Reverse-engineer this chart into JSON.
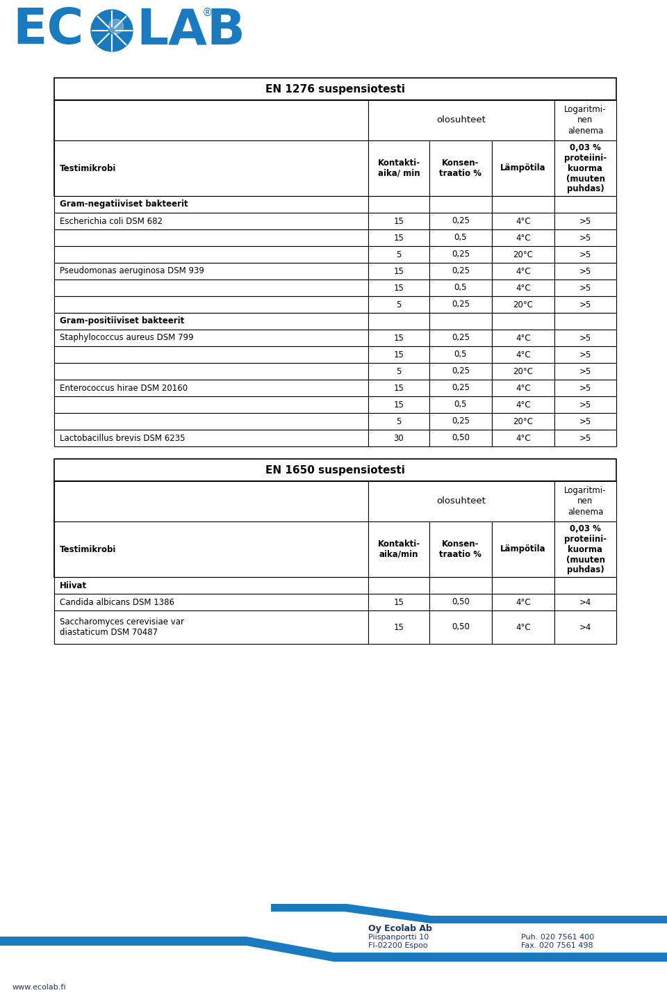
{
  "ecolab_blue": "#1a7abf",
  "ecolab_dark": "#1a3560",
  "title_en1276": "EN 1276 suspensiotesti",
  "title_en1650": "EN 1650 suspensiotesti",
  "col_olosuhteet": "olosuhteet",
  "col_logaritminen": "Logaritmi-\nnen\nalenema",
  "col_testimicrobi": "Testimikrobi",
  "col_kontakti_1276": "Kontakti-\naika/ min",
  "col_kontakti_1650": "Kontakti-\naika/min",
  "col_konsen": "Konsen-\ntraatio %",
  "col_lampotila": "Lämpötila",
  "col_003": "0,03 %\nproteiini-\nkuorma\n(muuten\npuhdas)",
  "gram_neg": "Gram-negatiiviset bakteerit",
  "gram_pos": "Gram-positiiviset bakteerit",
  "hiivat": "Hiivat",
  "en1276_data": [
    [
      "gram_neg",
      "",
      "",
      "",
      ""
    ],
    [
      "Escherichia coli DSM 682",
      "15",
      "0,25",
      "4°C",
      ">5"
    ],
    [
      "",
      "15",
      "0,5",
      "4°C",
      ">5"
    ],
    [
      "",
      "5",
      "0,25",
      "20°C",
      ">5"
    ],
    [
      "Pseudomonas aeruginosa DSM 939",
      "15",
      "0,25",
      "4°C",
      ">5"
    ],
    [
      "",
      "15",
      "0,5",
      "4°C",
      ">5"
    ],
    [
      "",
      "5",
      "0,25",
      "20°C",
      ">5"
    ],
    [
      "gram_pos",
      "",
      "",
      "",
      ""
    ],
    [
      "Staphylococcus aureus DSM 799",
      "15",
      "0,25",
      "4°C",
      ">5"
    ],
    [
      "",
      "15",
      "0,5",
      "4°C",
      ">5"
    ],
    [
      "",
      "5",
      "0,25",
      "20°C",
      ">5"
    ],
    [
      "Enterococcus hirae DSM 20160",
      "15",
      "0,25",
      "4°C",
      ">5"
    ],
    [
      "",
      "15",
      "0,5",
      "4°C",
      ">5"
    ],
    [
      "",
      "5",
      "0,25",
      "20°C",
      ">5"
    ],
    [
      "Lactobacillus brevis DSM 6235",
      "30",
      "0,50",
      "4°C",
      ">5"
    ]
  ],
  "en1650_data": [
    [
      "hiivat",
      "",
      "",
      "",
      ""
    ],
    [
      "Candida albicans DSM 1386",
      "15",
      "0,50",
      "4°C",
      ">4"
    ],
    [
      "Saccharomyces cerevisiae var\ndiastaticum DSM 70487",
      "15",
      "0,50",
      "4°C",
      ">4"
    ]
  ],
  "footer_company": "Oy Ecolab Ab",
  "footer_addr1": "Piispanportti 10",
  "footer_addr2": "FI-02200 Espoo",
  "footer_puh": "Puh. 020 7561 400",
  "footer_fax": "Fax. 020 7561 498",
  "footer_www": "www.ecolab.fi",
  "bg_color": "#ffffff"
}
